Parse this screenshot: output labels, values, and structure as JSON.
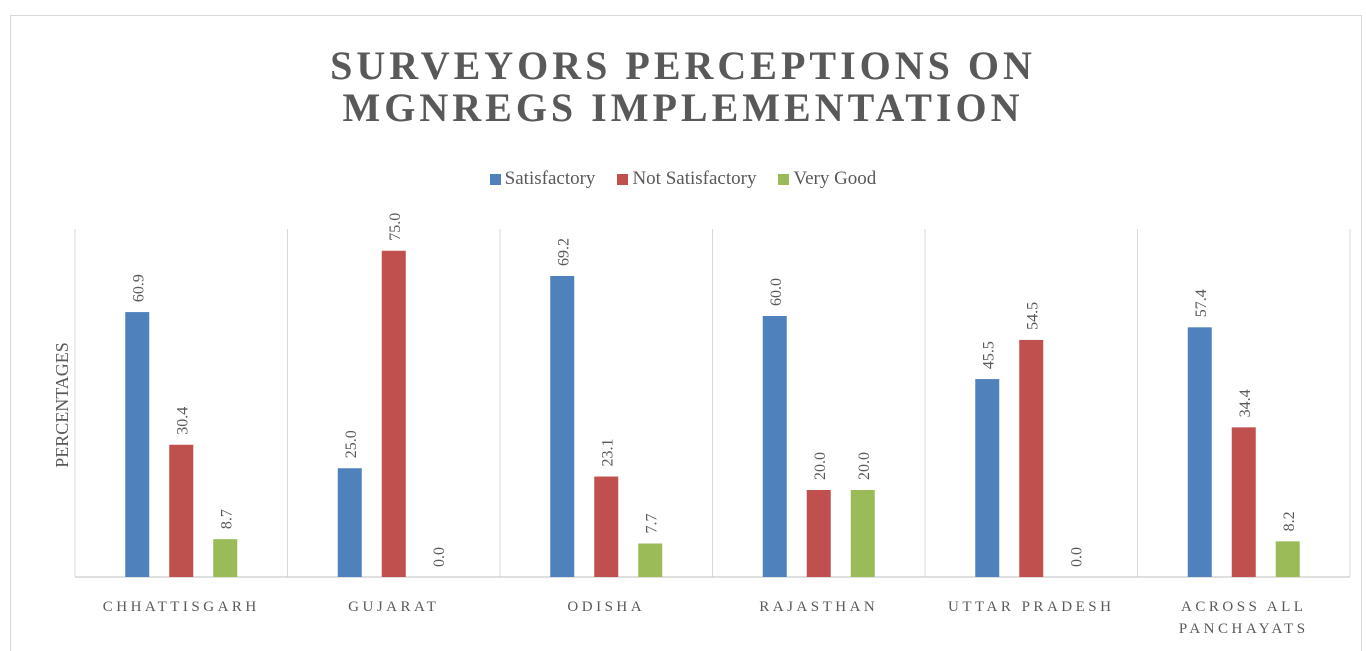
{
  "chart_data": {
    "type": "bar",
    "title": "SURVEYORS PERCEPTIONS ON MGNREGS IMPLEMENTATION",
    "y_label": "PERCENTAGES",
    "categories": [
      "CHHATTISGARH",
      "GUJARAT",
      "ODISHA",
      "RAJASTHAN",
      "UTTAR PRADESH",
      "ACROSS ALL PANCHAYATS"
    ],
    "series": [
      {
        "name": "Satisfactory",
        "color": "#4f81bd",
        "values": [
          60.9,
          25,
          69.2,
          60,
          45.5,
          57.4
        ],
        "value_labels": [
          "60.9",
          "25.0",
          "69.2",
          "60.0",
          "45.5",
          "57.4"
        ]
      },
      {
        "name": "Not Satisfactory",
        "color": "#c0504d",
        "values": [
          30.4,
          75,
          23.1,
          20,
          54.5,
          34.4
        ],
        "value_labels": [
          "30.4",
          "75.0",
          "23.1",
          "20.0",
          "54.5",
          "34.4"
        ]
      },
      {
        "name": "Very Good",
        "color": "#9bbb59",
        "values": [
          8.7,
          0,
          7.7,
          20,
          0,
          8.2
        ],
        "value_labels": [
          "8.7",
          "0.0",
          "7.7",
          "20.0",
          "0.0",
          "8.2"
        ]
      }
    ],
    "ylim": [
      0,
      80
    ],
    "legend": "top"
  }
}
